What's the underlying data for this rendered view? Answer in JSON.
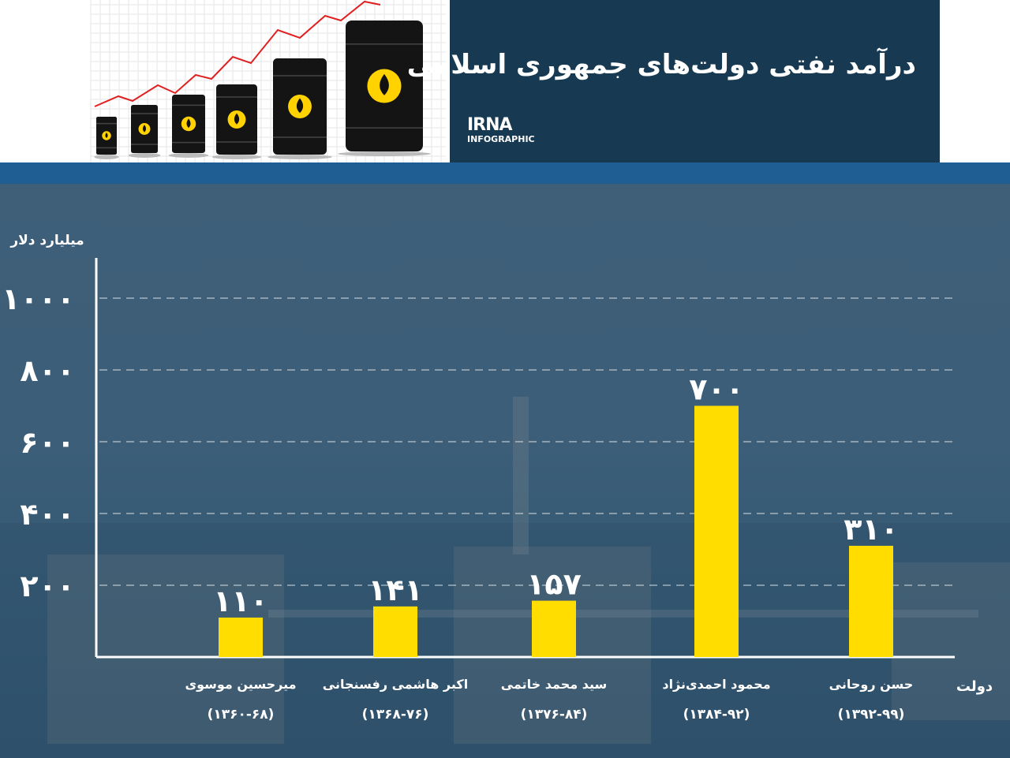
{
  "header": {
    "title": "درآمد نفتی دولت‌های جمهوری اسلامی",
    "brand_name": "IRNA",
    "brand_sub": "INFOGRAPHIC"
  },
  "colors": {
    "bar": "#ffdd00",
    "header_panel": "#173a52",
    "band": "#1f5e93",
    "axis": "#ffffff"
  },
  "chart_data": {
    "type": "bar",
    "ylabel": "میلیارد دلار",
    "xlabel": "دولت",
    "ylim": [
      0,
      1000
    ],
    "y_ticks": [
      200,
      400,
      600,
      800,
      1000
    ],
    "y_tick_labels": [
      "۲۰۰",
      "۴۰۰",
      "۶۰۰",
      "۸۰۰",
      "۱۰۰۰"
    ],
    "grid": true,
    "categories": [
      {
        "name": "میرحسین موسوی",
        "period": "(۱۳۶۰-۶۸)"
      },
      {
        "name": "اکبر هاشمی رفسنجانی",
        "period": "(۱۳۶۸-۷۶)"
      },
      {
        "name": "سید محمد خاتمی",
        "period": "(۱۳۷۶-۸۴)"
      },
      {
        "name": "محمود احمدی‌نژاد",
        "period": "(۱۳۸۴-۹۲)"
      },
      {
        "name": "حسن روحانی",
        "period": "(۱۳۹۲-۹۹)"
      }
    ],
    "values": [
      110,
      141,
      157,
      700,
      310
    ],
    "value_labels": [
      "۱۱۰",
      "۱۴۱",
      "۱۵۷",
      "۷۰۰",
      "۳۱۰"
    ]
  }
}
